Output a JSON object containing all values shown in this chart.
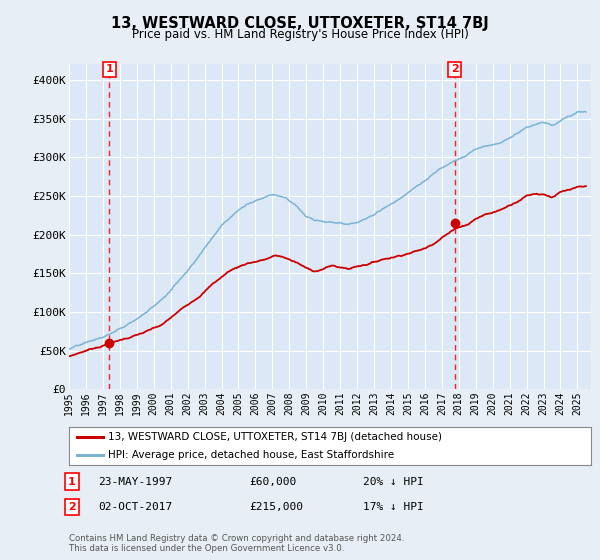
{
  "title": "13, WESTWARD CLOSE, UTTOXETER, ST14 7BJ",
  "subtitle": "Price paid vs. HM Land Registry's House Price Index (HPI)",
  "background_color": "#e8eef5",
  "plot_bg_color": "#dce8f5",
  "grid_color": "#ffffff",
  "legend_label_red": "13, WESTWARD CLOSE, UTTOXETER, ST14 7BJ (detached house)",
  "legend_label_blue": "HPI: Average price, detached house, East Staffordshire",
  "transaction1_label": "1",
  "transaction1_date": "23-MAY-1997",
  "transaction1_price": "£60,000",
  "transaction1_note": "20% ↓ HPI",
  "transaction2_label": "2",
  "transaction2_date": "02-OCT-2017",
  "transaction2_price": "£215,000",
  "transaction2_note": "17% ↓ HPI",
  "footer": "Contains HM Land Registry data © Crown copyright and database right 2024.\nThis data is licensed under the Open Government Licence v3.0.",
  "transaction1_year": 1997.38,
  "transaction1_value": 60000,
  "transaction2_year": 2017.75,
  "transaction2_value": 215000,
  "ylim": [
    0,
    420000
  ],
  "xlim_start": 1995.0,
  "xlim_end": 2025.8,
  "yticks": [
    0,
    50000,
    100000,
    150000,
    200000,
    250000,
    300000,
    350000,
    400000
  ],
  "ytick_labels": [
    "£0",
    "£50K",
    "£100K",
    "£150K",
    "£200K",
    "£250K",
    "£300K",
    "£350K",
    "£400K"
  ],
  "key_years_r": [
    1995.0,
    1996.0,
    1997.38,
    1998.5,
    1999.5,
    2000.5,
    2001.5,
    2002.5,
    2003.5,
    2004.5,
    2005.5,
    2006.5,
    2007.2,
    2007.8,
    2008.5,
    2009.0,
    2009.5,
    2010.0,
    2010.5,
    2011.0,
    2011.5,
    2012.0,
    2012.5,
    2013.0,
    2013.5,
    2014.0,
    2014.5,
    2015.0,
    2015.5,
    2016.0,
    2016.5,
    2017.0,
    2017.75,
    2018.0,
    2018.5,
    2019.0,
    2019.5,
    2020.0,
    2020.5,
    2021.0,
    2021.5,
    2022.0,
    2022.5,
    2023.0,
    2023.5,
    2024.0,
    2024.5,
    2025.0
  ],
  "key_vals_r": [
    42000,
    50000,
    60000,
    68000,
    75000,
    83000,
    100000,
    118000,
    138000,
    155000,
    165000,
    170000,
    175000,
    172000,
    165000,
    158000,
    155000,
    158000,
    162000,
    160000,
    158000,
    162000,
    165000,
    168000,
    172000,
    175000,
    178000,
    182000,
    185000,
    188000,
    195000,
    205000,
    215000,
    218000,
    222000,
    230000,
    235000,
    238000,
    242000,
    248000,
    255000,
    262000,
    265000,
    265000,
    262000,
    268000,
    270000,
    272000
  ],
  "key_years_b": [
    1995.0,
    1996.0,
    1997.0,
    1998.0,
    1999.0,
    2000.0,
    2001.0,
    2002.0,
    2003.0,
    2004.0,
    2005.0,
    2006.0,
    2007.0,
    2007.8,
    2008.5,
    2009.0,
    2009.5,
    2010.0,
    2010.5,
    2011.0,
    2011.5,
    2012.0,
    2012.5,
    2013.0,
    2013.5,
    2014.0,
    2014.5,
    2015.0,
    2015.5,
    2016.0,
    2016.5,
    2017.0,
    2017.5,
    2018.0,
    2018.5,
    2019.0,
    2019.5,
    2020.0,
    2020.5,
    2021.0,
    2021.5,
    2022.0,
    2022.5,
    2023.0,
    2023.5,
    2024.0,
    2024.5,
    2025.0
  ],
  "key_vals_b": [
    52000,
    58000,
    65000,
    75000,
    88000,
    105000,
    128000,
    155000,
    185000,
    215000,
    235000,
    248000,
    258000,
    255000,
    242000,
    230000,
    225000,
    222000,
    220000,
    218000,
    215000,
    218000,
    222000,
    228000,
    235000,
    242000,
    250000,
    258000,
    265000,
    272000,
    280000,
    288000,
    295000,
    302000,
    308000,
    315000,
    318000,
    320000,
    325000,
    332000,
    340000,
    348000,
    352000,
    355000,
    352000,
    358000,
    362000,
    368000
  ]
}
